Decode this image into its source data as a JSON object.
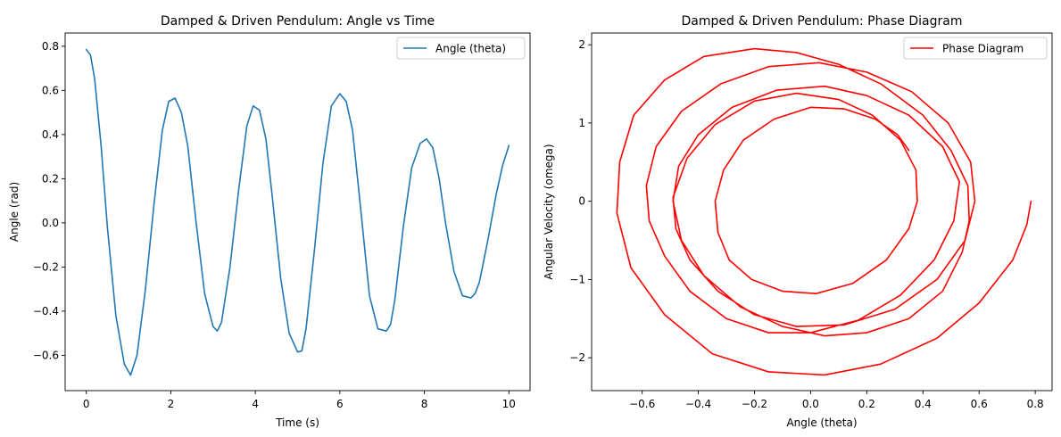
{
  "chart_data": [
    {
      "type": "line",
      "title": "Damped & Driven Pendulum: Angle vs Time",
      "xlabel": "Time (s)",
      "ylabel": "Angle (rad)",
      "xlim": [
        -0.5,
        10.5
      ],
      "ylim": [
        -0.76,
        0.86
      ],
      "xticks": [
        0,
        2,
        4,
        6,
        8,
        10
      ],
      "xtick_labels": [
        "0",
        "2",
        "4",
        "6",
        "8",
        "10"
      ],
      "yticks": [
        -0.6,
        -0.4,
        -0.2,
        0.0,
        0.2,
        0.4,
        0.6,
        0.8
      ],
      "ytick_labels": [
        "−0.6",
        "−0.4",
        "−0.2",
        "0.0",
        "0.2",
        "0.4",
        "0.6",
        "0.8"
      ],
      "legend": "top-right",
      "grid": false,
      "series": [
        {
          "name": "Angle (theta)",
          "color": "#1f77b4",
          "x": [
            0.0,
            0.1,
            0.2,
            0.35,
            0.5,
            0.7,
            0.9,
            1.05,
            1.2,
            1.4,
            1.6,
            1.8,
            1.95,
            2.1,
            2.25,
            2.4,
            2.6,
            2.8,
            3.0,
            3.1,
            3.2,
            3.4,
            3.6,
            3.8,
            3.95,
            4.1,
            4.25,
            4.4,
            4.6,
            4.8,
            5.0,
            5.1,
            5.2,
            5.4,
            5.6,
            5.8,
            6.0,
            6.15,
            6.3,
            6.5,
            6.7,
            6.9,
            7.1,
            7.2,
            7.3,
            7.5,
            7.7,
            7.9,
            8.05,
            8.2,
            8.35,
            8.5,
            8.7,
            8.9,
            9.1,
            9.2,
            9.3,
            9.5,
            9.7,
            9.85,
            10.0
          ],
          "y": [
            0.785,
            0.76,
            0.65,
            0.35,
            -0.02,
            -0.42,
            -0.64,
            -0.69,
            -0.6,
            -0.3,
            0.08,
            0.42,
            0.55,
            0.565,
            0.5,
            0.35,
            0.0,
            -0.32,
            -0.47,
            -0.49,
            -0.45,
            -0.2,
            0.14,
            0.44,
            0.53,
            0.51,
            0.38,
            0.12,
            -0.25,
            -0.5,
            -0.585,
            -0.58,
            -0.48,
            -0.12,
            0.27,
            0.53,
            0.585,
            0.55,
            0.42,
            0.05,
            -0.33,
            -0.48,
            -0.49,
            -0.46,
            -0.35,
            -0.02,
            0.25,
            0.36,
            0.38,
            0.34,
            0.2,
            0.0,
            -0.22,
            -0.33,
            -0.34,
            -0.32,
            -0.27,
            -0.08,
            0.13,
            0.26,
            0.35
          ]
        }
      ]
    },
    {
      "type": "line",
      "title": "Damped & Driven Pendulum: Phase Diagram",
      "xlabel": "Angle (theta)",
      "ylabel": "Angular Velocity (omega)",
      "xlim": [
        -0.78,
        0.86
      ],
      "ylim": [
        -2.42,
        2.15
      ],
      "xticks": [
        -0.6,
        -0.4,
        -0.2,
        0.0,
        0.2,
        0.4,
        0.6,
        0.8
      ],
      "xtick_labels": [
        "−0.6",
        "−0.4",
        "−0.2",
        "0.0",
        "0.2",
        "0.4",
        "0.6",
        "0.8"
      ],
      "yticks": [
        -2,
        -1,
        0,
        1,
        2
      ],
      "ytick_labels": [
        "−2",
        "−1",
        "0",
        "1",
        "2"
      ],
      "legend": "top-right",
      "grid": false,
      "series": [
        {
          "name": "Phase Diagram",
          "color": "#ff0000",
          "x": [
            0.785,
            0.77,
            0.72,
            0.6,
            0.45,
            0.25,
            0.05,
            -0.15,
            -0.35,
            -0.52,
            -0.64,
            -0.69,
            -0.68,
            -0.63,
            -0.52,
            -0.38,
            -0.2,
            -0.05,
            0.1,
            0.25,
            0.4,
            0.5,
            0.56,
            0.565,
            0.54,
            0.47,
            0.35,
            0.2,
            0.05,
            -0.1,
            -0.25,
            -0.38,
            -0.46,
            -0.49,
            -0.47,
            -0.4,
            -0.28,
            -0.12,
            0.05,
            0.2,
            0.35,
            0.47,
            0.53,
            0.51,
            0.44,
            0.32,
            0.17,
            0.0,
            -0.15,
            -0.3,
            -0.43,
            -0.52,
            -0.575,
            -0.585,
            -0.55,
            -0.46,
            -0.32,
            -0.15,
            0.03,
            0.2,
            0.36,
            0.49,
            0.57,
            0.585,
            0.55,
            0.45,
            0.3,
            0.12,
            -0.05,
            -0.2,
            -0.33,
            -0.43,
            -0.48,
            -0.49,
            -0.44,
            -0.34,
            -0.2,
            -0.05,
            0.1,
            0.22,
            0.32,
            0.375,
            0.38,
            0.35,
            0.27,
            0.15,
            0.02,
            -0.1,
            -0.21,
            -0.29,
            -0.33,
            -0.34,
            -0.31,
            -0.24,
            -0.13,
            0.0,
            0.12,
            0.23,
            0.31,
            0.35
          ],
          "y": [
            0.0,
            -0.3,
            -0.75,
            -1.3,
            -1.75,
            -2.08,
            -2.22,
            -2.18,
            -1.95,
            -1.45,
            -0.85,
            -0.15,
            0.5,
            1.1,
            1.55,
            1.85,
            1.95,
            1.9,
            1.75,
            1.5,
            1.1,
            0.65,
            0.2,
            -0.25,
            -0.65,
            -1.15,
            -1.5,
            -1.68,
            -1.72,
            -1.6,
            -1.35,
            -0.95,
            -0.5,
            0.0,
            0.45,
            0.85,
            1.2,
            1.42,
            1.47,
            1.35,
            1.1,
            0.7,
            0.25,
            -0.25,
            -0.75,
            -1.2,
            -1.52,
            -1.68,
            -1.68,
            -1.5,
            -1.15,
            -0.7,
            -0.25,
            0.2,
            0.7,
            1.15,
            1.5,
            1.72,
            1.77,
            1.65,
            1.4,
            1.0,
            0.5,
            0.0,
            -0.5,
            -1.0,
            -1.38,
            -1.58,
            -1.6,
            -1.45,
            -1.15,
            -0.75,
            -0.35,
            0.05,
            0.55,
            0.98,
            1.28,
            1.38,
            1.3,
            1.1,
            0.78,
            0.4,
            0.0,
            -0.35,
            -0.75,
            -1.05,
            -1.18,
            -1.15,
            -1.0,
            -0.75,
            -0.4,
            0.0,
            0.4,
            0.78,
            1.05,
            1.2,
            1.18,
            1.05,
            0.85,
            0.65
          ]
        }
      ]
    }
  ]
}
